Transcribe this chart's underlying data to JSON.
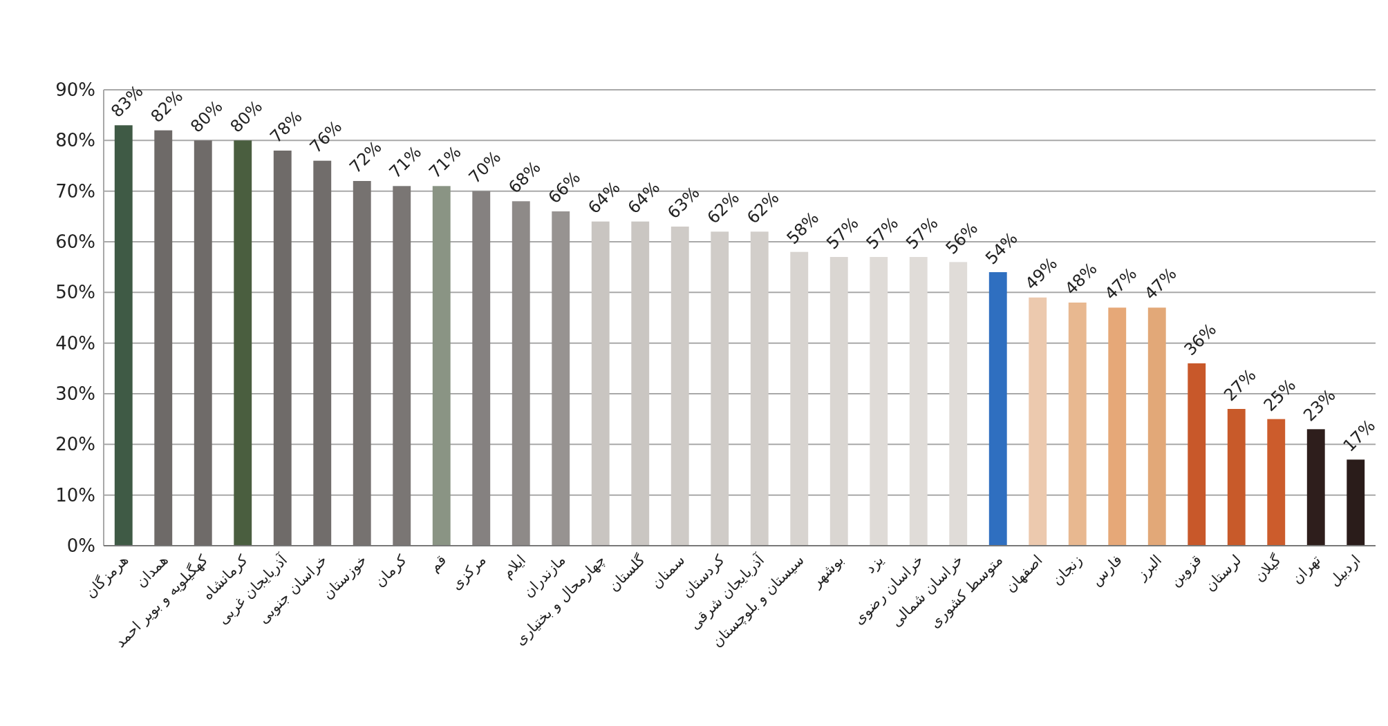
{
  "chart_data": {
    "type": "bar",
    "categories": [
      "هرمزگان",
      "همدان",
      "کهگیلویه و بویر احمد",
      "کرمانشاه",
      "آذربایجان غربی",
      "خراسان جنوبی",
      "خوزستان",
      "کرمان",
      "قم",
      "مرکزی",
      "ایلام",
      "مازندران",
      "چهارمحال و بختیاری",
      "گلستان",
      "سمنان",
      "کردستان",
      "آذربایجان شرقی",
      "سیستان و بلوچستان",
      "بوشهر",
      "یزد",
      "خراسان رضوی",
      "خراسان شمالی",
      "متوسط کشوری",
      "اصفهان",
      "زنجان",
      "فارس",
      "البرز",
      "قزوین",
      "لرستان",
      "گیلان",
      "تهران",
      "اردبیل"
    ],
    "values": [
      83,
      82,
      80,
      80,
      78,
      76,
      72,
      71,
      71,
      70,
      68,
      66,
      64,
      64,
      63,
      62,
      62,
      58,
      57,
      57,
      57,
      56,
      54,
      49,
      48,
      47,
      47,
      36,
      27,
      25,
      23,
      17
    ],
    "value_labels": [
      "83%",
      "82%",
      "80%",
      "80%",
      "78%",
      "76%",
      "72%",
      "71%",
      "71%",
      "70%",
      "68%",
      "66%",
      "64%",
      "64%",
      "63%",
      "62%",
      "62%",
      "58%",
      "57%",
      "57%",
      "57%",
      "56%",
      "54%",
      "49%",
      "48%",
      "47%",
      "47%",
      "36%",
      "27%",
      "25%",
      "23%",
      "17%"
    ],
    "colors": [
      "#3f5a45",
      "#6e6a68",
      "#6f6b69",
      "#4a5e3f",
      "#6f6b69",
      "#716d6b",
      "#767270",
      "#7a7674",
      "#8a9484",
      "#858180",
      "#8e8a88",
      "#979391",
      "#c9c5c1",
      "#cac6c2",
      "#cfcbc7",
      "#d0ccc8",
      "#d2ceca",
      "#d8d4d0",
      "#dad6d2",
      "#dfdbd7",
      "#e0dcd8",
      "#e0dcd8",
      "#2f6fc0",
      "#ecc9ae",
      "#e8b890",
      "#e6a878",
      "#e2a878",
      "#c8582a",
      "#c85a2a",
      "#cc5c2c",
      "#2e1e1c",
      "#2a1c1a"
    ],
    "ylim": [
      0,
      90
    ],
    "yticks": [
      {
        "value": 0,
        "label": "0%"
      },
      {
        "value": 10,
        "label": "10%"
      },
      {
        "value": 20,
        "label": "20%"
      },
      {
        "value": 30,
        "label": "30%"
      },
      {
        "value": 40,
        "label": "40%"
      },
      {
        "value": 50,
        "label": "50%"
      },
      {
        "value": 60,
        "label": "60%"
      },
      {
        "value": 70,
        "label": "70%"
      },
      {
        "value": 80,
        "label": "80%"
      },
      {
        "value": 90,
        "label": "90%"
      }
    ],
    "grid": "y"
  }
}
